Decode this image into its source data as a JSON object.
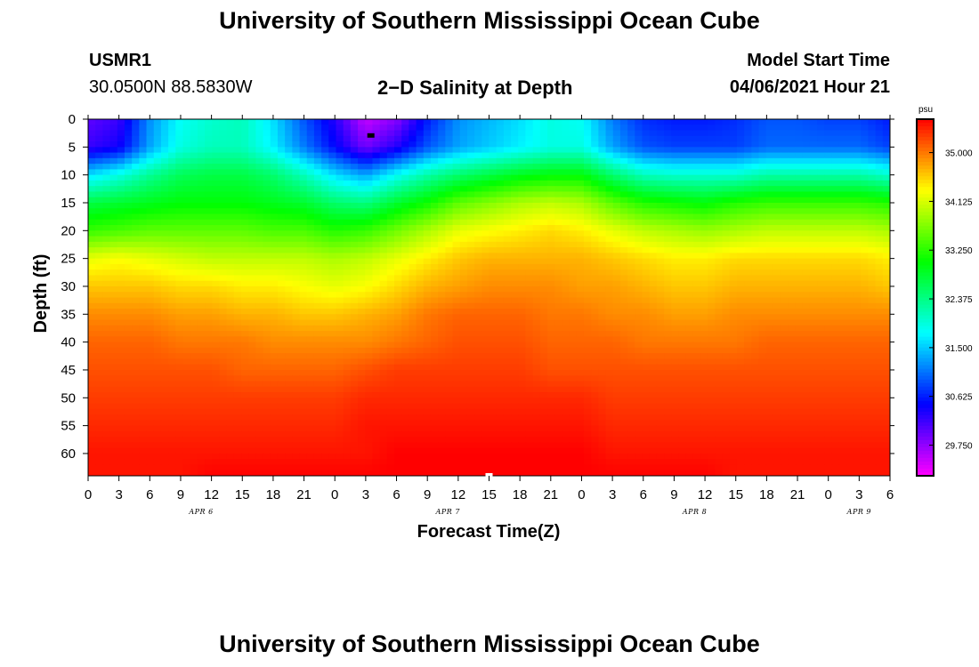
{
  "header": {
    "title_top": "University of Southern Mississippi Ocean Cube",
    "title_bottom": "University of Southern Mississippi Ocean Cube",
    "station_id": "USMR1",
    "station_coords": "30.0500N  88.5830W",
    "plot_title": "2−D Salinity at Depth",
    "model_start_label": "Model Start Time",
    "model_start_value": "04/06/2021 Hour 21"
  },
  "chart_data": {
    "type": "heatmap",
    "title": "2−D Salinity at Depth",
    "xlabel": "Forecast Time(Z)",
    "ylabel": "Depth (ft)",
    "x_unit": "hours since APR 6 00Z",
    "xlim": [
      0,
      78
    ],
    "ylim": [
      0,
      64
    ],
    "x_ticks": [
      0,
      3,
      6,
      9,
      12,
      15,
      18,
      21,
      24,
      27,
      30,
      33,
      36,
      39,
      42,
      45,
      48,
      51,
      54,
      57,
      60,
      63,
      66,
      69,
      72,
      75,
      78
    ],
    "x_tick_labels": [
      "0",
      "3",
      "6",
      "9",
      "12",
      "15",
      "18",
      "21",
      "0",
      "3",
      "6",
      "9",
      "12",
      "15",
      "18",
      "21",
      "0",
      "3",
      "6",
      "9",
      "12",
      "15",
      "18",
      "21",
      "0",
      "3",
      "6"
    ],
    "y_ticks": [
      0,
      5,
      10,
      15,
      20,
      25,
      30,
      35,
      40,
      45,
      50,
      55,
      60
    ],
    "y_tick_labels": [
      "0",
      "5",
      "10",
      "15",
      "20",
      "25",
      "30",
      "35",
      "40",
      "45",
      "50",
      "55",
      "60"
    ],
    "date_labels": [
      {
        "text": "APR 6",
        "hour": 11
      },
      {
        "text": "APR 7",
        "hour": 35
      },
      {
        "text": "APR 8",
        "hour": 59
      },
      {
        "text": "APR 9",
        "hour": 75
      }
    ],
    "colorbar": {
      "unit": "psu",
      "min": 29.2,
      "max": 35.6,
      "tick_values": [
        35.0,
        34.125,
        33.25,
        32.375,
        31.5,
        30.625,
        29.75
      ],
      "tick_labels": [
        "35.000",
        "34.125",
        "33.250",
        "32.375",
        "31.500",
        "30.625",
        "29.750"
      ]
    },
    "time_hours": [
      0,
      3,
      6,
      9,
      12,
      15,
      18,
      21,
      24,
      27,
      30,
      33,
      36,
      39,
      42,
      45,
      48,
      51,
      54,
      57,
      60,
      63,
      66,
      69,
      72,
      75,
      78
    ],
    "depth_ft": [
      0,
      5,
      10,
      15,
      20,
      25,
      30,
      35,
      40,
      45,
      50,
      55,
      60,
      64
    ],
    "salinity_psu": [
      [
        30.0,
        30.2,
        31.2,
        31.8,
        32.0,
        32.1,
        31.6,
        30.9,
        30.3,
        29.5,
        29.8,
        30.6,
        31.2,
        31.4,
        31.6,
        31.9,
        31.8,
        31.1,
        30.7,
        30.6,
        30.6,
        30.7,
        30.9,
        30.9,
        30.8,
        30.8,
        30.6
      ],
      [
        30.2,
        30.4,
        31.3,
        31.9,
        32.1,
        32.1,
        31.7,
        31.1,
        30.5,
        29.9,
        30.3,
        30.9,
        31.3,
        31.5,
        31.7,
        31.9,
        31.9,
        31.3,
        30.9,
        30.8,
        30.8,
        30.8,
        31.0,
        31.0,
        31.0,
        31.0,
        30.8
      ],
      [
        31.6,
        31.9,
        32.3,
        32.6,
        32.7,
        32.7,
        32.5,
        32.1,
        31.6,
        31.3,
        31.8,
        32.2,
        32.5,
        32.7,
        32.9,
        33.0,
        33.0,
        32.5,
        32.1,
        32.0,
        32.0,
        32.0,
        32.2,
        32.2,
        32.2,
        32.2,
        32.0
      ],
      [
        32.7,
        32.8,
        32.9,
        33.0,
        33.0,
        33.0,
        32.9,
        32.8,
        32.5,
        32.4,
        32.8,
        33.1,
        33.5,
        33.7,
        33.9,
        34.0,
        33.9,
        33.5,
        33.2,
        33.1,
        33.0,
        33.2,
        33.3,
        33.3,
        33.3,
        33.3,
        33.2
      ],
      [
        33.3,
        33.4,
        33.5,
        33.5,
        33.5,
        33.5,
        33.4,
        33.4,
        33.2,
        33.3,
        33.6,
        33.9,
        34.2,
        34.3,
        34.4,
        34.5,
        34.4,
        34.2,
        34.0,
        33.9,
        33.8,
        33.9,
        34.0,
        34.0,
        34.0,
        34.0,
        33.9
      ],
      [
        34.2,
        34.3,
        34.2,
        34.1,
        34.0,
        34.0,
        34.0,
        34.0,
        33.9,
        34.0,
        34.2,
        34.4,
        34.6,
        34.7,
        34.7,
        34.7,
        34.7,
        34.6,
        34.5,
        34.4,
        34.4,
        34.5,
        34.5,
        34.5,
        34.5,
        34.5,
        34.4
      ],
      [
        34.6,
        34.6,
        34.6,
        34.5,
        34.5,
        34.4,
        34.4,
        34.3,
        34.2,
        34.3,
        34.5,
        34.7,
        34.8,
        34.9,
        34.9,
        34.9,
        34.8,
        34.8,
        34.7,
        34.6,
        34.6,
        34.7,
        34.7,
        34.7,
        34.7,
        34.7,
        34.6
      ],
      [
        34.9,
        34.9,
        34.9,
        34.8,
        34.8,
        34.7,
        34.7,
        34.6,
        34.6,
        34.7,
        34.8,
        35.0,
        35.1,
        35.1,
        35.1,
        35.0,
        35.0,
        34.9,
        34.9,
        34.8,
        34.8,
        34.9,
        34.9,
        34.9,
        34.9,
        34.9,
        34.9
      ],
      [
        35.1,
        35.1,
        35.1,
        35.0,
        35.0,
        35.0,
        34.9,
        34.9,
        34.9,
        34.9,
        35.0,
        35.1,
        35.2,
        35.2,
        35.2,
        35.1,
        35.1,
        35.1,
        35.0,
        35.0,
        35.0,
        35.0,
        35.1,
        35.1,
        35.1,
        35.1,
        35.1
      ],
      [
        35.2,
        35.2,
        35.2,
        35.2,
        35.2,
        35.1,
        35.1,
        35.1,
        35.1,
        35.2,
        35.3,
        35.3,
        35.3,
        35.3,
        35.3,
        35.2,
        35.2,
        35.2,
        35.2,
        35.2,
        35.2,
        35.2,
        35.2,
        35.2,
        35.2,
        35.2,
        35.2
      ],
      [
        35.3,
        35.3,
        35.3,
        35.3,
        35.3,
        35.3,
        35.3,
        35.3,
        35.3,
        35.4,
        35.4,
        35.4,
        35.4,
        35.4,
        35.4,
        35.4,
        35.4,
        35.3,
        35.3,
        35.3,
        35.3,
        35.3,
        35.3,
        35.3,
        35.3,
        35.3,
        35.3
      ],
      [
        35.4,
        35.4,
        35.4,
        35.4,
        35.4,
        35.4,
        35.4,
        35.4,
        35.4,
        35.5,
        35.5,
        35.5,
        35.5,
        35.5,
        35.5,
        35.5,
        35.5,
        35.4,
        35.4,
        35.4,
        35.4,
        35.4,
        35.4,
        35.4,
        35.4,
        35.4,
        35.4
      ],
      [
        35.5,
        35.5,
        35.5,
        35.5,
        35.5,
        35.5,
        35.5,
        35.5,
        35.5,
        35.5,
        35.6,
        35.6,
        35.6,
        35.6,
        35.6,
        35.6,
        35.6,
        35.5,
        35.5,
        35.5,
        35.5,
        35.5,
        35.5,
        35.5,
        35.5,
        35.5,
        35.5
      ],
      [
        35.5,
        35.5,
        35.5,
        35.5,
        35.6,
        35.6,
        35.6,
        35.6,
        35.6,
        35.6,
        35.6,
        35.6,
        35.6,
        35.6,
        35.6,
        35.6,
        35.6,
        35.6,
        35.6,
        35.6,
        35.6,
        35.5,
        35.5,
        35.5,
        35.5,
        35.5,
        35.5
      ]
    ],
    "markers": [
      {
        "name": "min-marker",
        "hour": 27.5,
        "depth": 3,
        "color": "#000000"
      },
      {
        "name": "max-marker",
        "hour": 39,
        "depth": 64,
        "color": "#ffffff"
      }
    ]
  }
}
